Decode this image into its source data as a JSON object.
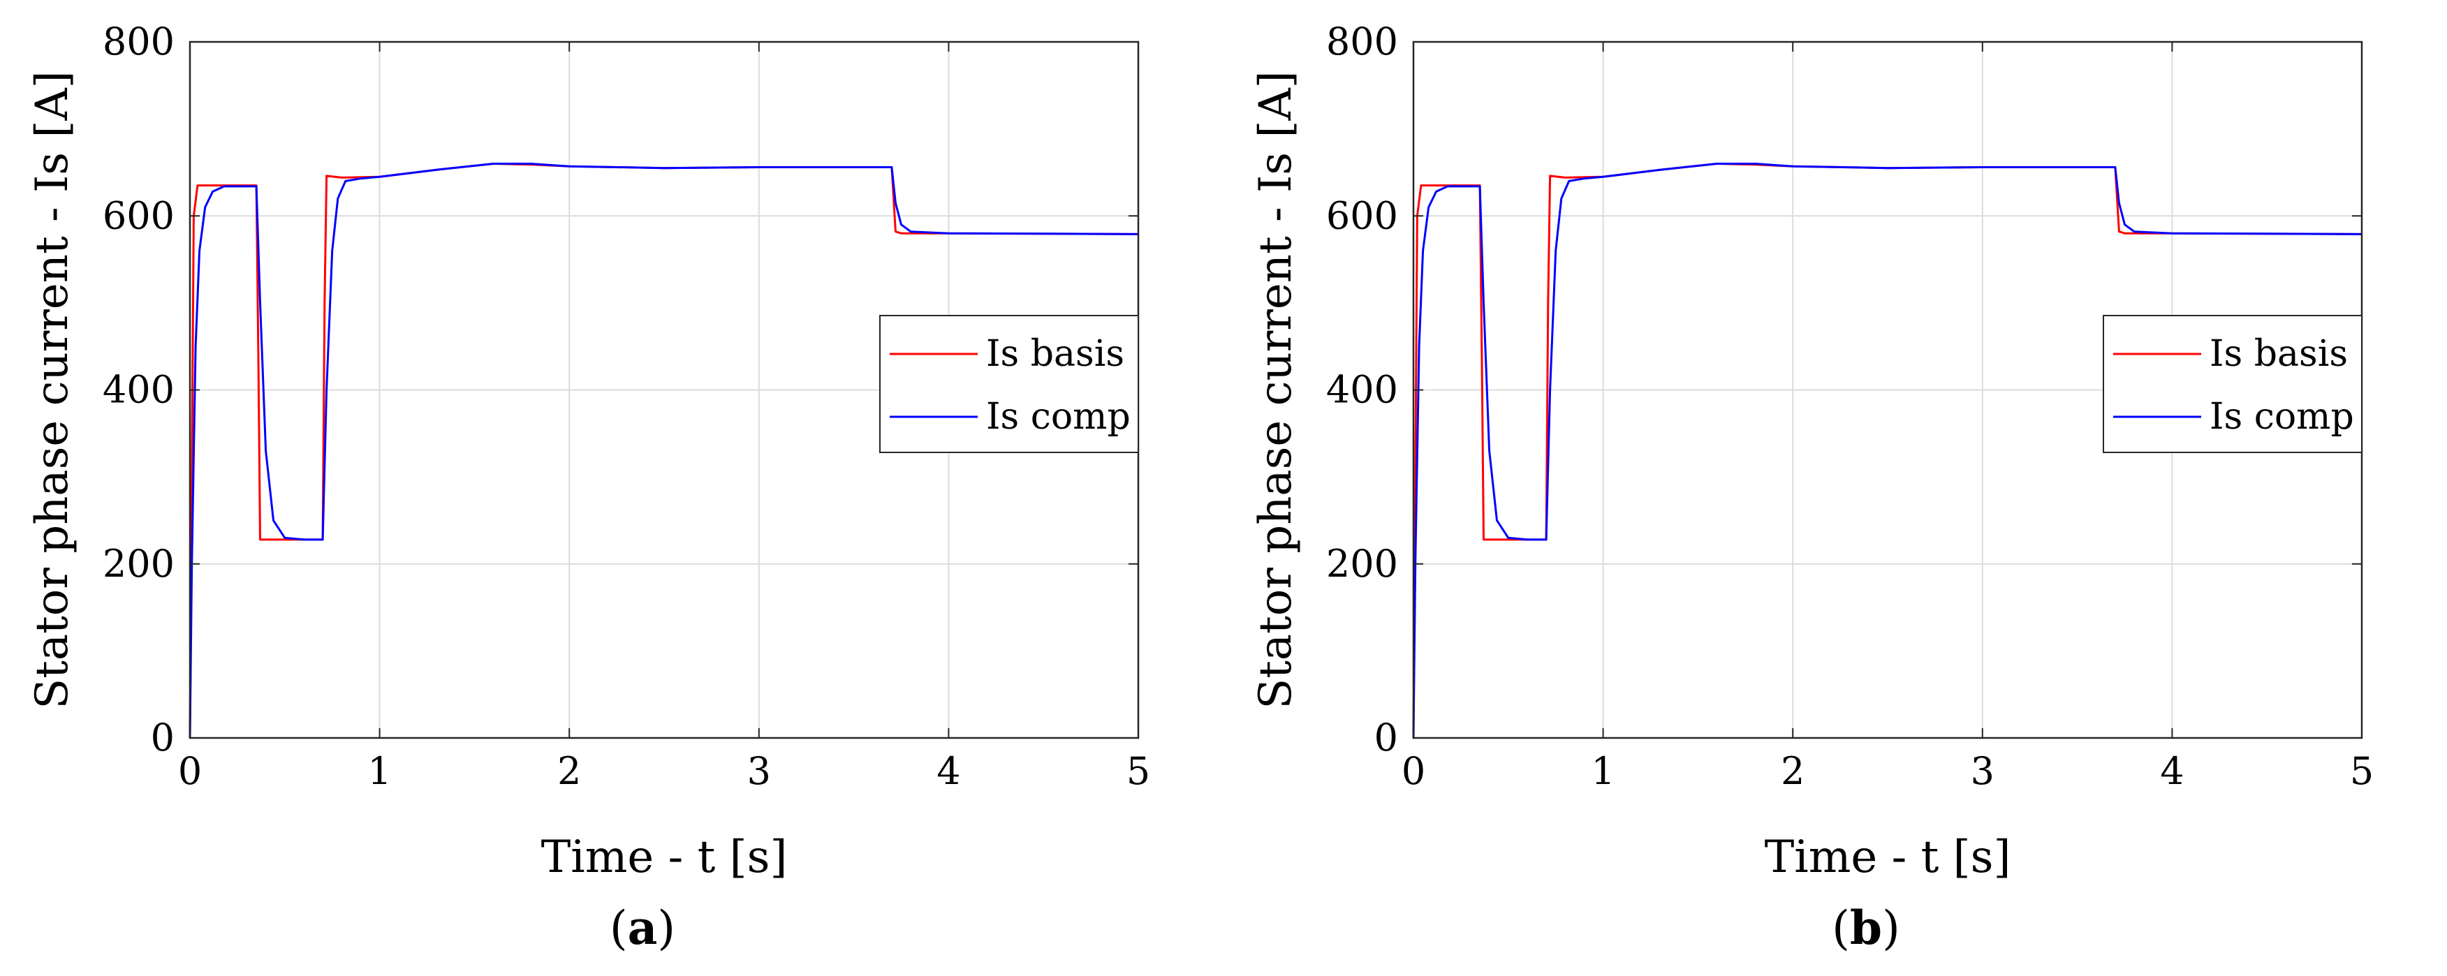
{
  "chart_data": [
    {
      "type": "line",
      "panel_label": "a",
      "xlabel": "Time - t [s]",
      "ylabel": "Stator phase current - Is [A]",
      "xlim": [
        0,
        5
      ],
      "ylim": [
        0,
        800
      ],
      "xticks": [
        0,
        1,
        2,
        3,
        4,
        5
      ],
      "yticks": [
        0,
        200,
        400,
        600,
        800
      ],
      "grid": true,
      "legend": "right",
      "series": [
        {
          "name": "Is basis",
          "color": "#ff0000",
          "x": [
            0,
            0.01,
            0.02,
            0.04,
            0.35,
            0.36,
            0.37,
            0.7,
            0.71,
            0.72,
            0.8,
            1.0,
            1.3,
            1.6,
            1.8,
            2.0,
            2.5,
            3.0,
            3.7,
            3.71,
            3.72,
            3.75,
            4.0,
            5.0
          ],
          "values": [
            0,
            300,
            600,
            635,
            635,
            450,
            228,
            228,
            500,
            646,
            644,
            645,
            653,
            660,
            659,
            657,
            655,
            656,
            656,
            620,
            582,
            580,
            580,
            579
          ]
        },
        {
          "name": "Is comp",
          "color": "#0000ff",
          "x": [
            0,
            0.01,
            0.03,
            0.05,
            0.08,
            0.12,
            0.18,
            0.35,
            0.37,
            0.4,
            0.44,
            0.5,
            0.6,
            0.7,
            0.72,
            0.75,
            0.78,
            0.82,
            0.9,
            1.0,
            1.3,
            1.6,
            1.8,
            2.0,
            2.5,
            3.0,
            3.7,
            3.72,
            3.75,
            3.8,
            4.0,
            5.0
          ],
          "values": [
            0,
            200,
            450,
            560,
            610,
            628,
            634,
            634,
            500,
            330,
            250,
            230,
            228,
            228,
            400,
            560,
            620,
            640,
            643,
            645,
            653,
            660,
            660,
            657,
            655,
            656,
            656,
            615,
            590,
            582,
            580,
            579
          ]
        }
      ]
    },
    {
      "type": "line",
      "panel_label": "b",
      "xlabel": "Time - t [s]",
      "ylabel": "Stator phase current - Is [A]",
      "xlim": [
        0,
        5
      ],
      "ylim": [
        0,
        800
      ],
      "xticks": [
        0,
        1,
        2,
        3,
        4,
        5
      ],
      "yticks": [
        0,
        200,
        400,
        600,
        800
      ],
      "grid": true,
      "legend": "right",
      "series": [
        {
          "name": "Is basis",
          "color": "#ff0000",
          "x": [
            0,
            0.01,
            0.02,
            0.04,
            0.35,
            0.36,
            0.37,
            0.7,
            0.71,
            0.72,
            0.8,
            1.0,
            1.3,
            1.6,
            1.8,
            2.0,
            2.5,
            3.0,
            3.7,
            3.71,
            3.72,
            3.75,
            4.0,
            5.0
          ],
          "values": [
            0,
            300,
            600,
            635,
            635,
            450,
            228,
            228,
            500,
            646,
            644,
            645,
            653,
            660,
            659,
            657,
            655,
            656,
            656,
            620,
            582,
            580,
            580,
            579
          ]
        },
        {
          "name": "Is comp",
          "color": "#0000ff",
          "x": [
            0,
            0.01,
            0.03,
            0.05,
            0.08,
            0.12,
            0.18,
            0.35,
            0.37,
            0.4,
            0.44,
            0.5,
            0.6,
            0.7,
            0.72,
            0.75,
            0.78,
            0.82,
            0.9,
            1.0,
            1.3,
            1.6,
            1.8,
            2.0,
            2.5,
            3.0,
            3.7,
            3.72,
            3.75,
            3.8,
            4.0,
            5.0
          ],
          "values": [
            0,
            200,
            450,
            560,
            610,
            628,
            634,
            634,
            500,
            330,
            250,
            230,
            228,
            228,
            400,
            560,
            620,
            640,
            643,
            645,
            653,
            660,
            660,
            657,
            655,
            656,
            656,
            615,
            590,
            582,
            580,
            579
          ]
        }
      ]
    }
  ]
}
